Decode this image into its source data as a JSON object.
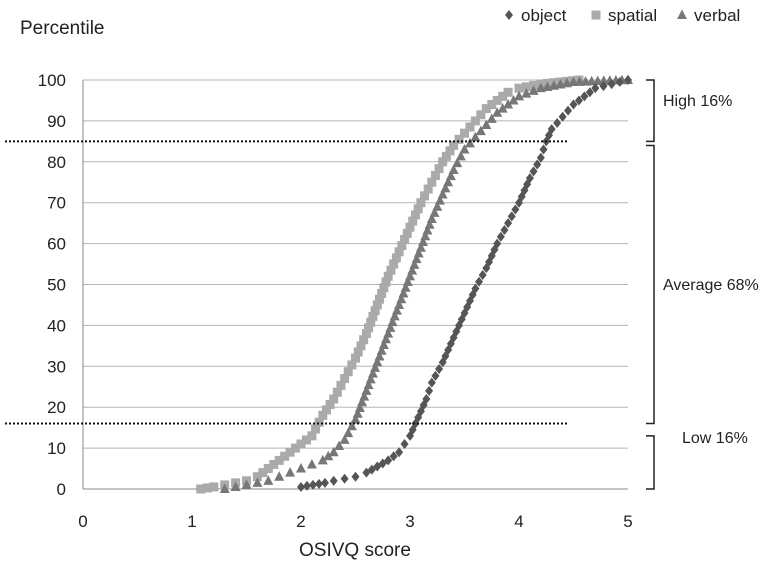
{
  "chart_data": {
    "type": "scatter",
    "title": "",
    "ylabel": "Percentile",
    "xlabel": "OSIVQ score",
    "xlim": [
      0,
      5
    ],
    "ylim": [
      0,
      100
    ],
    "x_ticks": [
      "0",
      "1",
      "2",
      "3",
      "4",
      "5"
    ],
    "y_ticks": [
      "0",
      "10",
      "20",
      "30",
      "40",
      "50",
      "60",
      "70",
      "80",
      "90",
      "100"
    ],
    "grid": "horizontal",
    "legend_position": "top-right",
    "cutoff_lines": [
      85,
      16
    ],
    "bands": [
      {
        "label": "High 16%",
        "from": 85,
        "to": 100
      },
      {
        "label": "Average 68%",
        "from": 16,
        "to": 84
      },
      {
        "label": "Low  16%",
        "from": 0,
        "to": 13
      }
    ],
    "series": [
      {
        "name": "object",
        "marker": "diamond",
        "color": "#555555",
        "points": [
          [
            2.0,
            0.5
          ],
          [
            2.22,
            1.5
          ],
          [
            2.3,
            2
          ],
          [
            2.4,
            2.5
          ],
          [
            2.5,
            3
          ],
          [
            2.6,
            4
          ],
          [
            2.7,
            5.5
          ],
          [
            2.8,
            7
          ],
          [
            2.9,
            9
          ],
          [
            2.95,
            11
          ],
          [
            3.0,
            13
          ],
          [
            3.05,
            16
          ],
          [
            3.1,
            19
          ],
          [
            3.15,
            22
          ],
          [
            3.2,
            26
          ],
          [
            3.3,
            31
          ],
          [
            3.4,
            37
          ],
          [
            3.5,
            43
          ],
          [
            3.6,
            49
          ],
          [
            3.7,
            54
          ],
          [
            3.8,
            60
          ],
          [
            3.9,
            65
          ],
          [
            4.0,
            70
          ],
          [
            4.1,
            76
          ],
          [
            4.2,
            81
          ],
          [
            4.25,
            85
          ],
          [
            4.3,
            88
          ],
          [
            4.4,
            91
          ],
          [
            4.5,
            94
          ],
          [
            4.6,
            96
          ],
          [
            4.7,
            98
          ],
          [
            4.85,
            99
          ],
          [
            5.0,
            100
          ]
        ]
      },
      {
        "name": "spatial",
        "marker": "square",
        "color": "#aaaaaa",
        "points": [
          [
            1.08,
            0
          ],
          [
            1.2,
            0.5
          ],
          [
            1.3,
            1
          ],
          [
            1.4,
            1.5
          ],
          [
            1.5,
            2
          ],
          [
            1.6,
            3
          ],
          [
            1.7,
            5
          ],
          [
            1.8,
            7
          ],
          [
            1.9,
            9
          ],
          [
            2.0,
            11
          ],
          [
            2.1,
            13
          ],
          [
            2.2,
            18
          ],
          [
            2.3,
            22
          ],
          [
            2.4,
            27
          ],
          [
            2.5,
            32
          ],
          [
            2.6,
            38
          ],
          [
            2.7,
            45
          ],
          [
            2.8,
            52
          ],
          [
            2.9,
            58
          ],
          [
            3.0,
            64
          ],
          [
            3.1,
            70
          ],
          [
            3.2,
            75
          ],
          [
            3.3,
            80
          ],
          [
            3.4,
            84
          ],
          [
            3.5,
            87
          ],
          [
            3.6,
            90
          ],
          [
            3.7,
            93
          ],
          [
            3.8,
            95
          ],
          [
            3.9,
            97
          ],
          [
            4.0,
            98
          ],
          [
            4.2,
            99
          ],
          [
            4.55,
            100
          ]
        ]
      },
      {
        "name": "verbal",
        "marker": "triangle",
        "color": "#777777",
        "points": [
          [
            1.3,
            0
          ],
          [
            1.4,
            0.5
          ],
          [
            1.5,
            1
          ],
          [
            1.6,
            1.5
          ],
          [
            1.7,
            2
          ],
          [
            1.8,
            3
          ],
          [
            1.9,
            4
          ],
          [
            2.0,
            5
          ],
          [
            2.1,
            6
          ],
          [
            2.2,
            7
          ],
          [
            2.3,
            9
          ],
          [
            2.4,
            12
          ],
          [
            2.5,
            17
          ],
          [
            2.6,
            24
          ],
          [
            2.7,
            31
          ],
          [
            2.8,
            38
          ],
          [
            2.9,
            45
          ],
          [
            3.0,
            52
          ],
          [
            3.1,
            59
          ],
          [
            3.2,
            66
          ],
          [
            3.3,
            72
          ],
          [
            3.4,
            78
          ],
          [
            3.5,
            83
          ],
          [
            3.6,
            86
          ],
          [
            3.7,
            89
          ],
          [
            3.8,
            92
          ],
          [
            3.9,
            94
          ],
          [
            4.0,
            96
          ],
          [
            4.2,
            98
          ],
          [
            4.5,
            99.5
          ],
          [
            5.0,
            100
          ]
        ]
      }
    ]
  }
}
